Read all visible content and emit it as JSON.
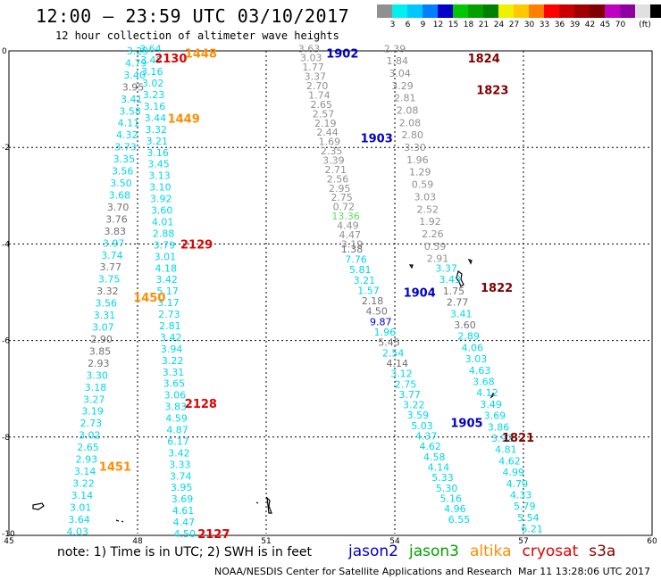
{
  "header": {
    "title": "12:00 – 23:59 UTC 03/10/2017",
    "subtitle": "12 hour collection of altimeter wave heights"
  },
  "scale": {
    "unit": "(ft)",
    "colors": [
      "#909090",
      "#00f0f0",
      "#00c8ff",
      "#0080ff",
      "#0000c8",
      "#00c800",
      "#00a000",
      "#008000",
      "#f0f000",
      "#ffc800",
      "#ff8000",
      "#ff0000",
      "#c80000",
      "#a00000",
      "#800000",
      "#c000c0",
      "#9000a0",
      "#e0e0e0",
      "#000000"
    ],
    "labels": [
      "3",
      "6",
      "9",
      "12",
      "15",
      "18",
      "21",
      "24",
      "27",
      "30",
      "33",
      "36",
      "39",
      "42",
      "45",
      "70"
    ]
  },
  "map": {
    "lon_min": 45,
    "lon_max": 60,
    "lat_max": 0,
    "lat_min": -10,
    "lon_ticks": [
      45,
      48,
      51,
      54,
      57,
      60
    ],
    "lat_ticks": [
      0,
      -2,
      -4,
      -6,
      -8,
      -10
    ],
    "gridlines": true,
    "track_labels": [
      {
        "text": "2130",
        "lon": 48.4,
        "lat": -0.15,
        "sat": "cryosat"
      },
      {
        "text": "1448",
        "lon": 49.1,
        "lat": -0.05,
        "sat": "altika"
      },
      {
        "text": "1449",
        "lon": 48.7,
        "lat": -1.4,
        "sat": "altika"
      },
      {
        "text": "2129",
        "lon": 49.0,
        "lat": -4.0,
        "sat": "cryosat"
      },
      {
        "text": "1450",
        "lon": 47.9,
        "lat": -5.1,
        "sat": "altika"
      },
      {
        "text": "2128",
        "lon": 49.1,
        "lat": -7.3,
        "sat": "cryosat"
      },
      {
        "text": "1451",
        "lon": 47.1,
        "lat": -8.6,
        "sat": "altika"
      },
      {
        "text": "2127",
        "lon": 49.4,
        "lat": -10.0,
        "sat": "cryosat"
      },
      {
        "text": "1902",
        "lon": 52.4,
        "lat": -0.05,
        "sat": "jason2"
      },
      {
        "text": "1903",
        "lon": 53.2,
        "lat": -1.8,
        "sat": "jason2"
      },
      {
        "text": "1904",
        "lon": 54.2,
        "lat": -5.0,
        "sat": "jason2"
      },
      {
        "text": "1905",
        "lon": 55.3,
        "lat": -7.7,
        "sat": "jason2"
      },
      {
        "text": "1824",
        "lon": 55.7,
        "lat": -0.15,
        "sat": "s3a"
      },
      {
        "text": "1823",
        "lon": 55.9,
        "lat": -0.8,
        "sat": "s3a"
      },
      {
        "text": "1822",
        "lon": 56.0,
        "lat": -4.9,
        "sat": "s3a"
      },
      {
        "text": "1821",
        "lon": 56.5,
        "lat": -8.0,
        "sat": "s3a"
      }
    ],
    "tracks": [
      {
        "lon0": 48.0,
        "lat0": 0,
        "lon1": 46.6,
        "lat1": -9.95,
        "color": "#00d8e8",
        "gray": [
          3,
          13,
          14,
          15,
          18,
          20,
          24,
          25,
          26
        ],
        "values": [
          "3.29",
          "4.79",
          "3.40",
          "3.95",
          "3.41",
          "3.58",
          "4.11",
          "4.32",
          "3.73",
          "3.35",
          "3.56",
          "3.50",
          "3.68",
          "3.70",
          "3.76",
          "3.83",
          "3.97",
          "3.74",
          "3.77",
          "3.75",
          "3.32",
          "3.56",
          "3.31",
          "3.07",
          "2.90",
          "3.85",
          "2.93",
          "3.30",
          "3.18",
          "3.27",
          "3.19",
          "2.73",
          "3.02",
          "2.65",
          "2.93",
          "3.14",
          "3.22",
          "3.14",
          "3.01",
          "3.64",
          "4.03"
        ]
      },
      {
        "lon0": 48.3,
        "lat0": 0.05,
        "lon1": 49.1,
        "lat1": -10.0,
        "color": "#00d8e8",
        "gray": [],
        "values": [
          "3.64",
          "3.45",
          "3.16",
          "3.02",
          "3.23",
          "3.16",
          "3.44",
          "3.32",
          "3.21",
          "3.16",
          "3.45",
          "3.13",
          "3.10",
          "3.92",
          "3.60",
          "4.01",
          "2.88",
          "3.79",
          "3.01",
          "4.18",
          "3.42",
          "5.17",
          "3.17",
          "2.73",
          "2.81",
          "3.42",
          "3.94",
          "3.22",
          "3.31",
          "3.65",
          "3.06",
          "3.83",
          "4.59",
          "4.87",
          "6.17",
          "3.42",
          "3.33",
          "3.74",
          "3.95",
          "3.69",
          "4.61",
          "4.47",
          "4.50"
        ]
      },
      {
        "lon0": 52.0,
        "lat0": 0.05,
        "lon1": 53.0,
        "lat1": -4.0,
        "color": "#909090",
        "gray": [],
        "values": [
          "3.63",
          "3.03",
          "1.77",
          "3.37",
          "2.70",
          "1.74",
          "2.65",
          "2.57",
          "2.19",
          "2.44",
          "1.69",
          "2.35",
          "3.39",
          "2.71",
          "2.56",
          "2.95",
          "2.75",
          "0.72",
          "13.36",
          "4.49",
          "4.47",
          "3.19"
        ]
      },
      {
        "lon0": 53.0,
        "lat0": -4.1,
        "lon1": 55.5,
        "lat1": -9.7,
        "color": "#00d8e8",
        "gray": [
          0,
          5,
          6,
          9,
          11
        ],
        "values": [
          "1.38",
          "7.76",
          "5.81",
          "3.21",
          "1.57",
          "2.18",
          "4.50",
          "9.87",
          "1.96",
          "5.45",
          "2.54",
          "4.14",
          "3.12",
          "2.75",
          "3.77",
          "3.22",
          "3.59",
          "5.03",
          "4.37",
          "4.62",
          "4.58",
          "4.14",
          "5.33",
          "5.30",
          "5.16",
          "4.96",
          "6.55"
        ]
      },
      {
        "lon0": 54.0,
        "lat0": 0.05,
        "lon1": 55.0,
        "lat1": -4.3,
        "color": "#909090",
        "gray": [],
        "values": [
          "2.39",
          "1.84",
          "3.04",
          "3.29",
          "2.81",
          "2.08",
          "2.08",
          "2.80",
          "3.30",
          "1.96",
          "1.29",
          "0.59",
          "3.03",
          "2.52",
          "1.92",
          "2.26",
          "0.59",
          "2.91"
        ]
      },
      {
        "lon0": 55.2,
        "lat0": -4.5,
        "lon1": 57.2,
        "lat1": -9.9,
        "color": "#00d8e8",
        "gray": [
          2,
          3,
          5
        ],
        "values": [
          "3.37",
          "3.43",
          "1.75",
          "2.77",
          "3.41",
          "3.60",
          "2.89",
          "4.06",
          "3.03",
          "4.63",
          "3.68",
          "4.12",
          "3.49",
          "3.69",
          "3.86",
          "3.92",
          "4.81",
          "4.62",
          "4.99",
          "4.79",
          "4.33",
          "5.79",
          "5.54",
          "6.21"
        ]
      }
    ]
  },
  "footer": {
    "note": "note: 1) Time is in UTC; 2) SWH is in feet",
    "legend": [
      {
        "name": "jason2",
        "color": "#0000c8"
      },
      {
        "name": "jason3",
        "color": "#00a000"
      },
      {
        "name": "altika",
        "color": "#ff8c00"
      },
      {
        "name": "cryosat",
        "color": "#e00000"
      },
      {
        "name": "s3a",
        "color": "#800000"
      }
    ],
    "credit": "NOAA/NESDIS Center for Satellite Applications and Research",
    "timestamp": "Mar 11 13:28:06 UTC 2017"
  }
}
